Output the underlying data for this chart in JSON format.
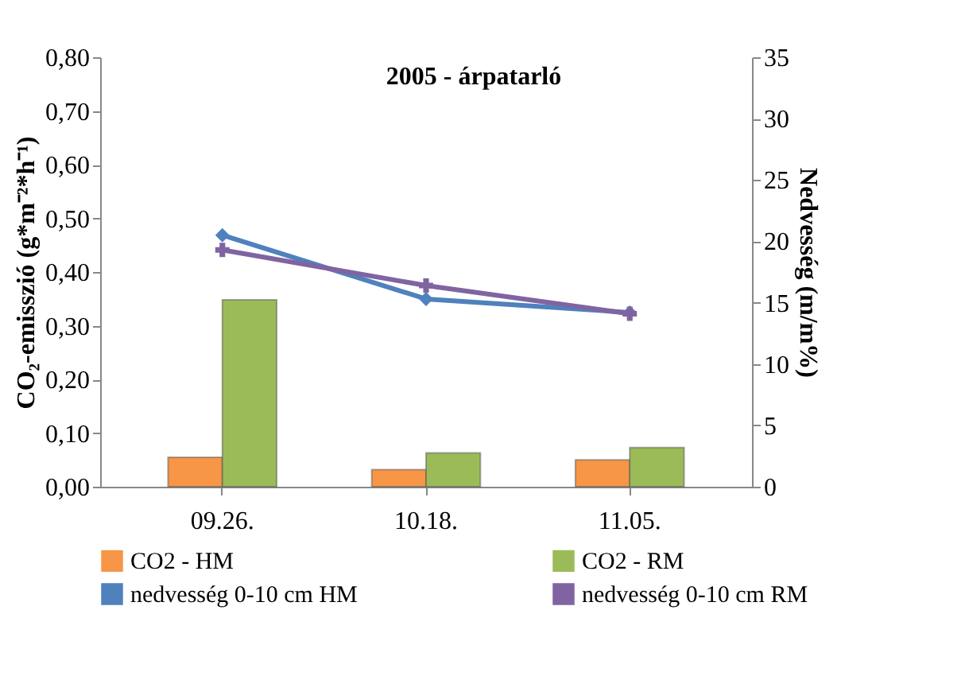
{
  "chart_data": {
    "type": "bar",
    "title": "2005 - árpatarló",
    "ylabel": "CO₂-emisszió (g*m⁻²*h⁻¹)",
    "y2label": "Nedvesség (m/m%)",
    "categories": [
      "09.26.",
      "10.18.",
      "11.05."
    ],
    "series": [
      {
        "name": "CO2 - HM",
        "color": "#f79646",
        "values": [
          0.055,
          0.032,
          0.05
        ]
      },
      {
        "name": "CO2 - RM",
        "color": "#9bbb59",
        "values": [
          0.348,
          0.063,
          0.073
        ]
      },
      {
        "name": "nedvesség 0-10 cm HM",
        "type": "line",
        "axis": "y2",
        "marker": "diamond",
        "color": "#4f81bd",
        "values": [
          20.5,
          15.3,
          14.2
        ]
      },
      {
        "name": "nedvesség 0-10 cm RM",
        "type": "line",
        "axis": "y2",
        "marker": "cross",
        "color": "#8064a2",
        "values": [
          19.3,
          16.4,
          14.1
        ]
      }
    ],
    "ylim": [
      0,
      0.8
    ],
    "yticks": [
      {
        "value": 0,
        "label": "0,00"
      },
      {
        "value": 0.1,
        "label": "0,10"
      },
      {
        "value": 0.2,
        "label": "0,20"
      },
      {
        "value": 0.3,
        "label": "0,30"
      },
      {
        "value": 0.4,
        "label": "0,40"
      },
      {
        "value": 0.5,
        "label": "0,50"
      },
      {
        "value": 0.6,
        "label": "0,60"
      },
      {
        "value": 0.7,
        "label": "0,70"
      },
      {
        "value": 0.8,
        "label": "0,80"
      }
    ],
    "y2lim": [
      0,
      35
    ],
    "y2ticks": [
      0,
      5,
      10,
      15,
      20,
      25,
      30,
      35
    ],
    "grid": false,
    "legend": "bottom"
  }
}
